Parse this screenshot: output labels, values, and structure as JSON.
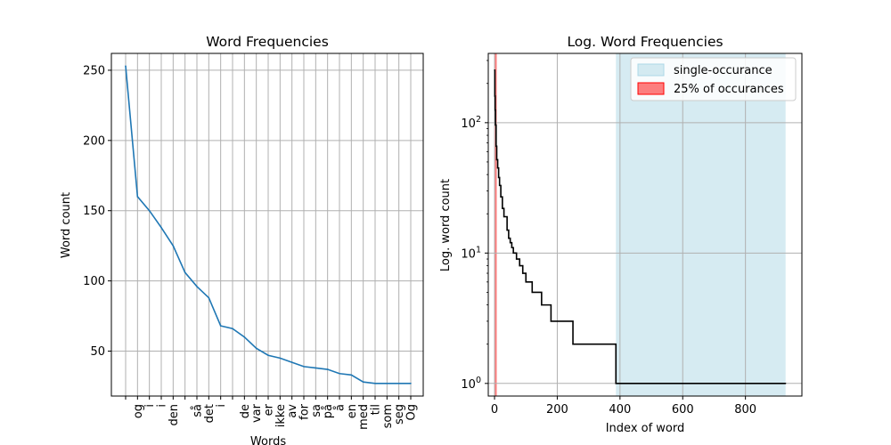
{
  "chart_data": [
    {
      "type": "line",
      "title": "Word Frequencies",
      "xlabel": "Words",
      "ylabel": "Word count",
      "grid": true,
      "ylim": [
        18,
        262
      ],
      "yticks": [
        50,
        100,
        150,
        200,
        250
      ],
      "categories": [
        "",
        "og",
        "i",
        "i",
        "den",
        "",
        "så",
        "det",
        "i",
        "",
        "de",
        "var",
        "er",
        "ikke",
        "av",
        "for",
        "sa",
        "på",
        "å",
        "en",
        "med",
        "til",
        "som",
        "seg",
        "Og"
      ],
      "series": [
        {
          "values": [
            253,
            160,
            150,
            138,
            125,
            106,
            96,
            88,
            68,
            66,
            60,
            52,
            47,
            45,
            42,
            39,
            38,
            37,
            34,
            33,
            28,
            27,
            27,
            27,
            27
          ]
        }
      ],
      "colors": {
        "line": "#1f77b4",
        "grid": "#b0b0b0"
      }
    },
    {
      "type": "line",
      "title": "Log. Word Frequencies",
      "xlabel": "Index of word",
      "ylabel": "Log. word count",
      "yscale": "log",
      "grid": true,
      "xlim": [
        -20,
        980
      ],
      "ylim": [
        0.8,
        340
      ],
      "xticks": [
        0,
        200,
        400,
        600,
        800
      ],
      "yticks": [
        1,
        10,
        100
      ],
      "ytick_labels": [
        {
          "base": "10",
          "exp": "0"
        },
        {
          "base": "10",
          "exp": "1"
        },
        {
          "base": "10",
          "exp": "2"
        }
      ],
      "legend_position": "top-right",
      "legend": [
        {
          "label": "single-occurance",
          "color": "#add8e6"
        },
        {
          "label": "25% of occurances",
          "color": "#ff0000"
        }
      ],
      "spans": [
        {
          "name": "single-occurance",
          "x0": 387,
          "x1": 928,
          "color": "#add8e6",
          "alpha": 0.5
        },
        {
          "name": "25% of occurances",
          "x0": 1,
          "x1": 7,
          "color": "#ff0000",
          "alpha": 0.5
        }
      ],
      "series": [
        {
          "x": [
            0,
            1,
            2,
            3,
            5,
            7,
            10,
            13,
            16,
            20,
            25,
            30,
            40,
            45,
            50,
            55,
            60,
            70,
            80,
            90,
            100,
            120,
            150,
            180,
            250,
            387,
            928
          ],
          "y": [
            253,
            160,
            125,
            96,
            66,
            52,
            45,
            38,
            33,
            27,
            22,
            19,
            15,
            13,
            12,
            11,
            10,
            9,
            8,
            7,
            6,
            5,
            4,
            3,
            2,
            1,
            1
          ]
        }
      ],
      "colors": {
        "line": "#000000",
        "grid": "#b0b0b0"
      }
    }
  ]
}
